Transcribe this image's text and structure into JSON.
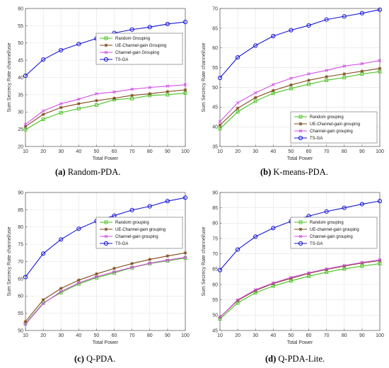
{
  "colors": {
    "random": "#44c21c",
    "ue": "#7d4a19",
    "channel": "#d24ee6",
    "tsga": "#1515d8"
  },
  "chart_data": [
    {
      "type": "line",
      "caption_tag": "(a)",
      "caption_text": "Random-PDA.",
      "xlabel": "Total Power",
      "ylabel": "Sum Secrecy Rate channel/use",
      "x": [
        10,
        20,
        30,
        40,
        50,
        60,
        70,
        80,
        90,
        100
      ],
      "xticks": [
        "10",
        "20",
        "30",
        "40",
        "50",
        "60",
        "70",
        "80",
        "90",
        "100"
      ],
      "ylim": [
        20,
        60
      ],
      "yticks": [
        "20",
        "25",
        "30",
        "35",
        "40",
        "45",
        "50",
        "55",
        "60"
      ],
      "grid": true,
      "legend_position": "middle-right",
      "series": [
        {
          "name": "Random Grouping",
          "color": "#44c21c",
          "marker": "square",
          "values": [
            24.9,
            27.9,
            29.8,
            31.0,
            32.0,
            33.6,
            33.9,
            34.8,
            35.0,
            35.5
          ]
        },
        {
          "name": "UE-Channel-gain Grouping",
          "color": "#7d4a19",
          "marker": "star",
          "values": [
            25.8,
            29.3,
            31.3,
            32.4,
            33.3,
            34.0,
            34.8,
            35.3,
            35.9,
            36.4
          ]
        },
        {
          "name": "Channel-gain Grouping",
          "color": "#d24ee6",
          "marker": "cross",
          "values": [
            26.4,
            30.3,
            32.4,
            33.7,
            35.3,
            35.8,
            36.6,
            37.1,
            37.5,
            37.9
          ]
        },
        {
          "name": "TS-GA",
          "color": "#1515d8",
          "marker": "circle",
          "values": [
            40.5,
            45.2,
            47.9,
            49.7,
            51.3,
            52.9,
            53.9,
            54.6,
            55.5,
            56.1
          ]
        }
      ]
    },
    {
      "type": "line",
      "caption_tag": "(b)",
      "caption_text": "K-means-PDA.",
      "xlabel": "Total Power",
      "ylabel": "Sum Secrecy Rate channel/use",
      "x": [
        10,
        20,
        30,
        40,
        50,
        60,
        70,
        80,
        90,
        100
      ],
      "xticks": [
        "10",
        "20",
        "30",
        "40",
        "50",
        "60",
        "70",
        "80",
        "90",
        "100"
      ],
      "ylim": [
        35,
        70
      ],
      "yticks": [
        "35",
        "40",
        "45",
        "50",
        "55",
        "60",
        "65",
        "70"
      ],
      "grid": true,
      "legend_position": "bottom-right",
      "series": [
        {
          "name": "Random grouping",
          "color": "#44c21c",
          "marker": "square",
          "values": [
            39.5,
            43.8,
            46.5,
            48.5,
            49.7,
            50.8,
            51.8,
            52.5,
            53.4,
            54.0
          ]
        },
        {
          "name": "UE-Channel-gain grouping",
          "color": "#7d4a19",
          "marker": "star",
          "values": [
            40.4,
            44.7,
            47.4,
            49.2,
            50.6,
            51.8,
            52.7,
            53.4,
            54.1,
            54.8
          ]
        },
        {
          "name": "Channel-gain grouping",
          "color": "#d24ee6",
          "marker": "cross",
          "values": [
            41.3,
            46.1,
            48.6,
            50.7,
            52.3,
            53.4,
            54.3,
            55.4,
            56.0,
            56.8
          ]
        },
        {
          "name": "TS-GA",
          "color": "#1515d8",
          "marker": "circle",
          "values": [
            52.4,
            57.6,
            60.6,
            63.0,
            64.5,
            65.7,
            67.2,
            68.0,
            68.8,
            69.7
          ]
        }
      ]
    },
    {
      "type": "line",
      "caption_tag": "(c)",
      "caption_text": "Q-PDA.",
      "xlabel": "Total Power",
      "ylabel": "Sum Secrecy Rate channel/use",
      "x": [
        10,
        20,
        30,
        40,
        50,
        60,
        70,
        80,
        90,
        100
      ],
      "xticks": [
        "10",
        "20",
        "30",
        "40",
        "50",
        "60",
        "70",
        "80",
        "90",
        "100"
      ],
      "ylim": [
        50,
        90
      ],
      "yticks": [
        "50",
        "55",
        "60",
        "65",
        "70",
        "75",
        "80",
        "85",
        "90"
      ],
      "grid": true,
      "legend_position": "middle-right",
      "series": [
        {
          "name": "Random grouping",
          "color": "#44c21c",
          "marker": "square",
          "values": [
            52.0,
            58.0,
            61.0,
            63.5,
            65.3,
            66.7,
            68.2,
            69.4,
            70.2,
            71.0
          ]
        },
        {
          "name": "UE-Channel-gain grouping",
          "color": "#7d4a19",
          "marker": "star",
          "values": [
            52.6,
            58.9,
            62.2,
            64.6,
            66.4,
            68.0,
            69.4,
            70.6,
            71.6,
            72.5
          ]
        },
        {
          "name": "Channel-gain grouping",
          "color": "#d24ee6",
          "marker": "cross",
          "values": [
            51.8,
            57.8,
            61.3,
            63.8,
            65.6,
            67.0,
            68.3,
            69.5,
            70.4,
            71.2
          ]
        },
        {
          "name": "TS-GA",
          "color": "#1515d8",
          "marker": "circle",
          "values": [
            65.5,
            72.3,
            76.4,
            79.5,
            81.7,
            83.3,
            84.9,
            86.0,
            87.5,
            88.5
          ]
        }
      ]
    },
    {
      "type": "line",
      "caption_tag": "(d)",
      "caption_text": "Q-PDA-Lite.",
      "xlabel": "Total Power",
      "ylabel": "Sum Secrecy Rate channel/use",
      "x": [
        10,
        20,
        30,
        40,
        50,
        60,
        70,
        80,
        90,
        100
      ],
      "xticks": [
        "10",
        "20",
        "30",
        "40",
        "50",
        "60",
        "70",
        "80",
        "90",
        "100"
      ],
      "ylim": [
        45,
        90
      ],
      "yticks": [
        "45",
        "50",
        "55",
        "60",
        "65",
        "70",
        "75",
        "80",
        "85",
        "90"
      ],
      "grid": true,
      "legend_position": "middle-right",
      "series": [
        {
          "name": "Random grouping",
          "color": "#44c21c",
          "marker": "square",
          "values": [
            48.8,
            54.0,
            57.3,
            59.5,
            61.2,
            62.7,
            64.0,
            65.1,
            66.0,
            66.8
          ]
        },
        {
          "name": "UE-channel-gain grouping",
          "color": "#7d4a19",
          "marker": "star",
          "values": [
            49.3,
            54.8,
            58.0,
            60.3,
            62.0,
            63.6,
            64.9,
            66.0,
            67.0,
            67.8
          ]
        },
        {
          "name": "Channel-gain grouping",
          "color": "#d24ee6",
          "marker": "cross",
          "values": [
            49.3,
            55.0,
            58.3,
            60.5,
            62.3,
            63.8,
            65.1,
            66.2,
            67.2,
            68.0
          ]
        },
        {
          "name": "TS-GA",
          "color": "#1515d8",
          "marker": "circle",
          "values": [
            64.7,
            71.4,
            75.6,
            78.4,
            80.6,
            82.3,
            83.8,
            85.0,
            86.2,
            87.2
          ]
        }
      ]
    }
  ]
}
